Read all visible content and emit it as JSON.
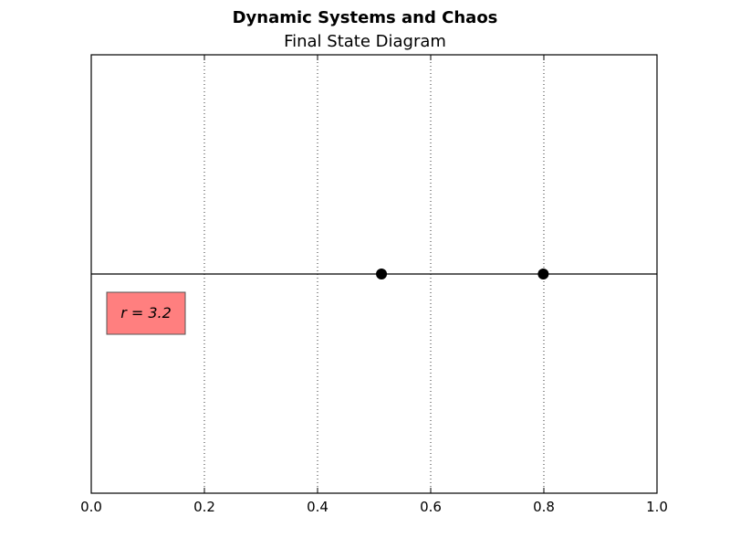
{
  "figure": {
    "suptitle": "Dynamic Systems and Chaos",
    "title": "Final State Diagram"
  },
  "chart_data": {
    "type": "scatter",
    "title": "Final State Diagram",
    "xlabel": "",
    "ylabel": "",
    "xlim": [
      0.0,
      1.0
    ],
    "ylim": [
      -1.0,
      1.0
    ],
    "xticks": [
      "0.0",
      "0.2",
      "0.4",
      "0.6",
      "0.8",
      "1.0"
    ],
    "xtick_values": [
      0.0,
      0.2,
      0.4,
      0.6,
      0.8,
      1.0
    ],
    "grid": "vertical dotted",
    "baseline_y": 0,
    "points": [
      {
        "x": 0.513,
        "y": 0
      },
      {
        "x": 0.799,
        "y": 0
      }
    ],
    "point_color": "#000000",
    "annotation": {
      "text": "r = 3.2",
      "background": "#ff7f7f",
      "placement": "left, below baseline"
    }
  }
}
